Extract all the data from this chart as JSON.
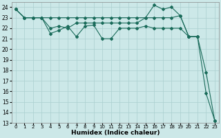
{
  "xlabel": "Humidex (Indice chaleur)",
  "x_values": [
    0,
    1,
    2,
    3,
    4,
    5,
    6,
    7,
    8,
    9,
    10,
    11,
    12,
    13,
    14,
    15,
    16,
    17,
    18,
    19,
    20,
    21,
    22,
    23
  ],
  "series": [
    [
      23.8,
      23.0,
      23.0,
      23.0,
      21.5,
      21.8,
      22.2,
      21.2,
      22.2,
      22.3,
      21.0,
      21.0,
      22.0,
      22.0,
      22.0,
      22.2,
      22.0,
      22.0,
      22.0,
      22.0,
      21.2,
      21.2,
      17.8,
      13.2
    ],
    [
      23.8,
      23.0,
      23.0,
      23.0,
      22.0,
      22.2,
      22.0,
      22.5,
      22.5,
      22.5,
      22.5,
      22.5,
      22.5,
      22.5,
      22.5,
      23.0,
      24.2,
      23.8,
      24.0,
      23.2,
      21.2,
      21.2,
      15.8,
      13.2
    ],
    [
      23.8,
      23.0,
      23.0,
      23.0,
      23.0,
      23.0,
      23.0,
      23.0,
      23.0,
      23.0,
      23.0,
      23.0,
      23.0,
      23.0,
      23.0,
      23.0,
      23.0,
      23.0,
      23.0,
      23.2,
      21.2,
      21.2,
      null,
      null
    ]
  ],
  "line_color": "#1a6b5a",
  "bg_color": "#cce8e8",
  "grid_color": "#aacfcf",
  "ylim": [
    13,
    24.5
  ],
  "yticks": [
    13,
    14,
    15,
    16,
    17,
    18,
    19,
    20,
    21,
    22,
    23,
    24
  ],
  "xticks": [
    0,
    1,
    2,
    3,
    4,
    5,
    6,
    7,
    8,
    9,
    10,
    11,
    12,
    13,
    14,
    15,
    16,
    17,
    18,
    19,
    20,
    21,
    22,
    23
  ]
}
